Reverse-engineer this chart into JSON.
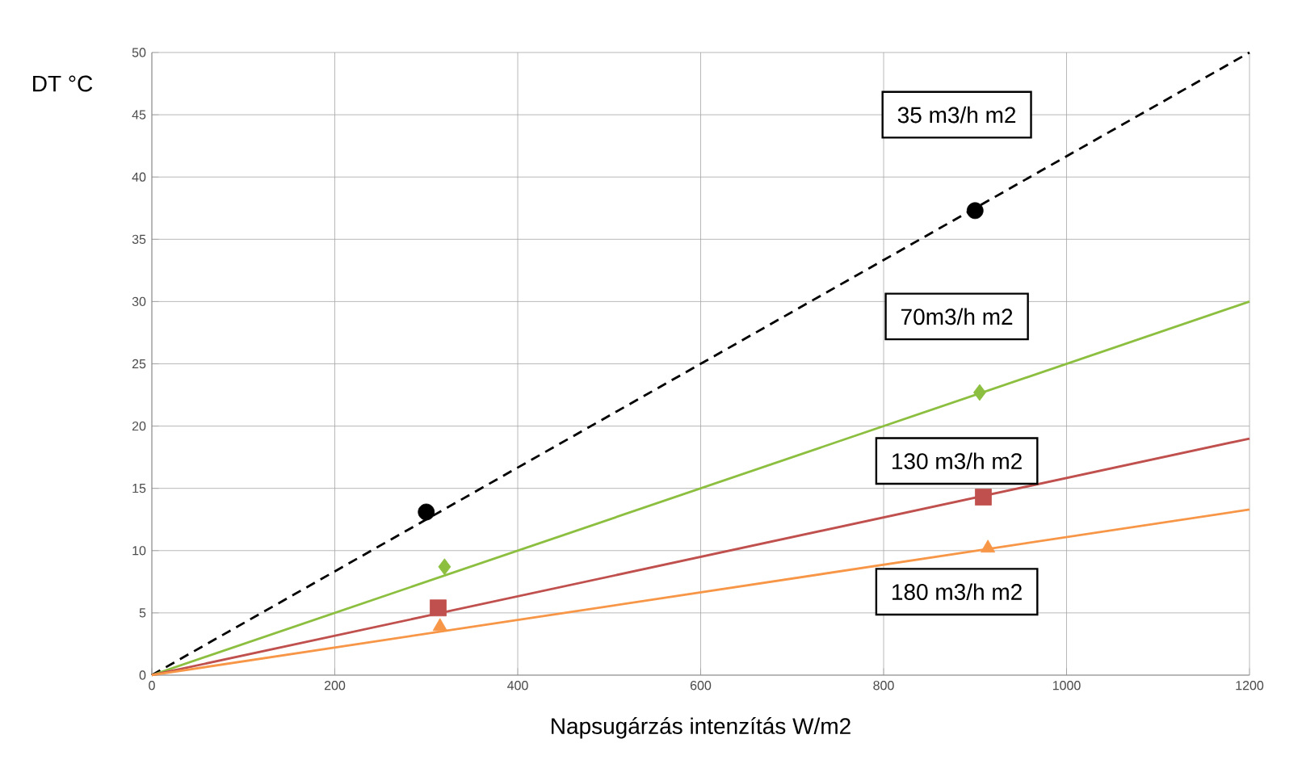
{
  "chart_data": {
    "type": "line",
    "xlabel": "Napsugárzás intenzítás W/m2",
    "ylabel": "DT °C",
    "xlim": [
      0,
      1200
    ],
    "ylim": [
      0,
      50
    ],
    "xticks": [
      0,
      200,
      400,
      600,
      800,
      1000,
      1200
    ],
    "yticks": [
      0,
      5,
      10,
      15,
      20,
      25,
      30,
      35,
      40,
      45,
      50
    ],
    "grid": true,
    "series": [
      {
        "name": "35 m3/h m2",
        "color": "#000000",
        "line_style": "dashed",
        "x": [
          0,
          1200
        ],
        "values": [
          0,
          50
        ]
      },
      {
        "name": "70m3/h m2",
        "color": "#8cbf3f",
        "line_style": "solid",
        "x": [
          0,
          1200
        ],
        "values": [
          0,
          30
        ]
      },
      {
        "name": "130 m3/h m2",
        "color": "#c0504d",
        "line_style": "solid",
        "x": [
          0,
          1200
        ],
        "values": [
          0,
          19
        ]
      },
      {
        "name": "180 m3/h m2",
        "color": "#f79646",
        "line_style": "solid",
        "x": [
          0,
          1200
        ],
        "values": [
          0,
          13.3
        ]
      },
      {
        "color": "#000000",
        "type": "scatter",
        "marker": "circle",
        "x": [
          300,
          900
        ],
        "values": [
          13.1,
          37.3
        ]
      },
      {
        "color": "#8cbf3f",
        "type": "scatter",
        "marker": "diamond",
        "x": [
          320,
          905
        ],
        "values": [
          8.7,
          22.7
        ]
      },
      {
        "color": "#c0504d",
        "type": "scatter",
        "marker": "square",
        "x": [
          313,
          909
        ],
        "values": [
          5.4,
          14.3
        ]
      },
      {
        "color": "#f79646",
        "type": "scatter",
        "marker": "triangle",
        "x": [
          315,
          914
        ],
        "values": [
          3.9,
          10.2
        ]
      }
    ]
  }
}
